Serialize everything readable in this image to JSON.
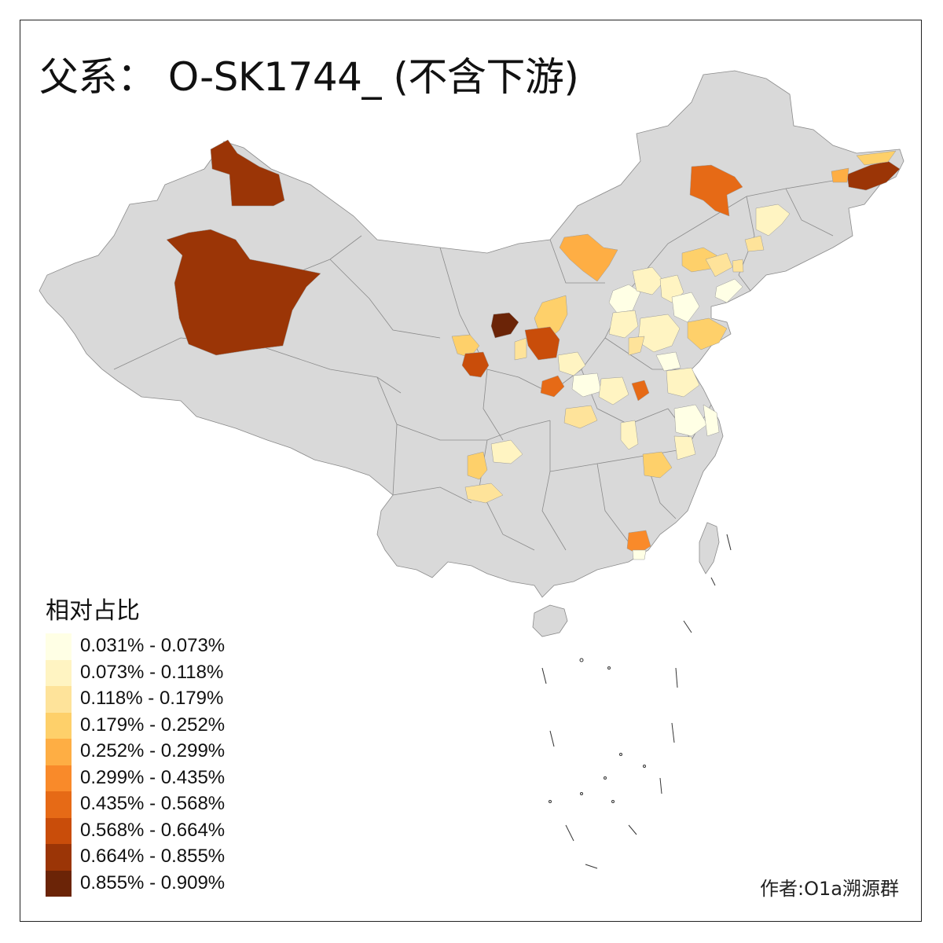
{
  "title": "父系： O-SK1744_ (不含下游)",
  "legend": {
    "title": "相对占比",
    "classes": [
      {
        "label": "0.031% - 0.073%",
        "color": "#FFFFE5"
      },
      {
        "label": "0.073% - 0.118%",
        "color": "#FFF4C2"
      },
      {
        "label": "0.118% - 0.179%",
        "color": "#FEE39A"
      },
      {
        "label": "0.179% - 0.252%",
        "color": "#FED06A"
      },
      {
        "label": "0.252% - 0.299%",
        "color": "#FEAE44"
      },
      {
        "label": "0.299% - 0.435%",
        "color": "#F98A2A"
      },
      {
        "label": "0.435% - 0.568%",
        "color": "#E66A16"
      },
      {
        "label": "0.568% - 0.664%",
        "color": "#C94D0A"
      },
      {
        "label": "0.664% - 0.855%",
        "color": "#9B3506"
      },
      {
        "label": "0.855% - 0.909%",
        "color": "#6B2407"
      }
    ]
  },
  "map": {
    "base_color": "#D9D9D9",
    "border_color": "#8A8A8A"
  },
  "author": "作者:O1a溯源群"
}
